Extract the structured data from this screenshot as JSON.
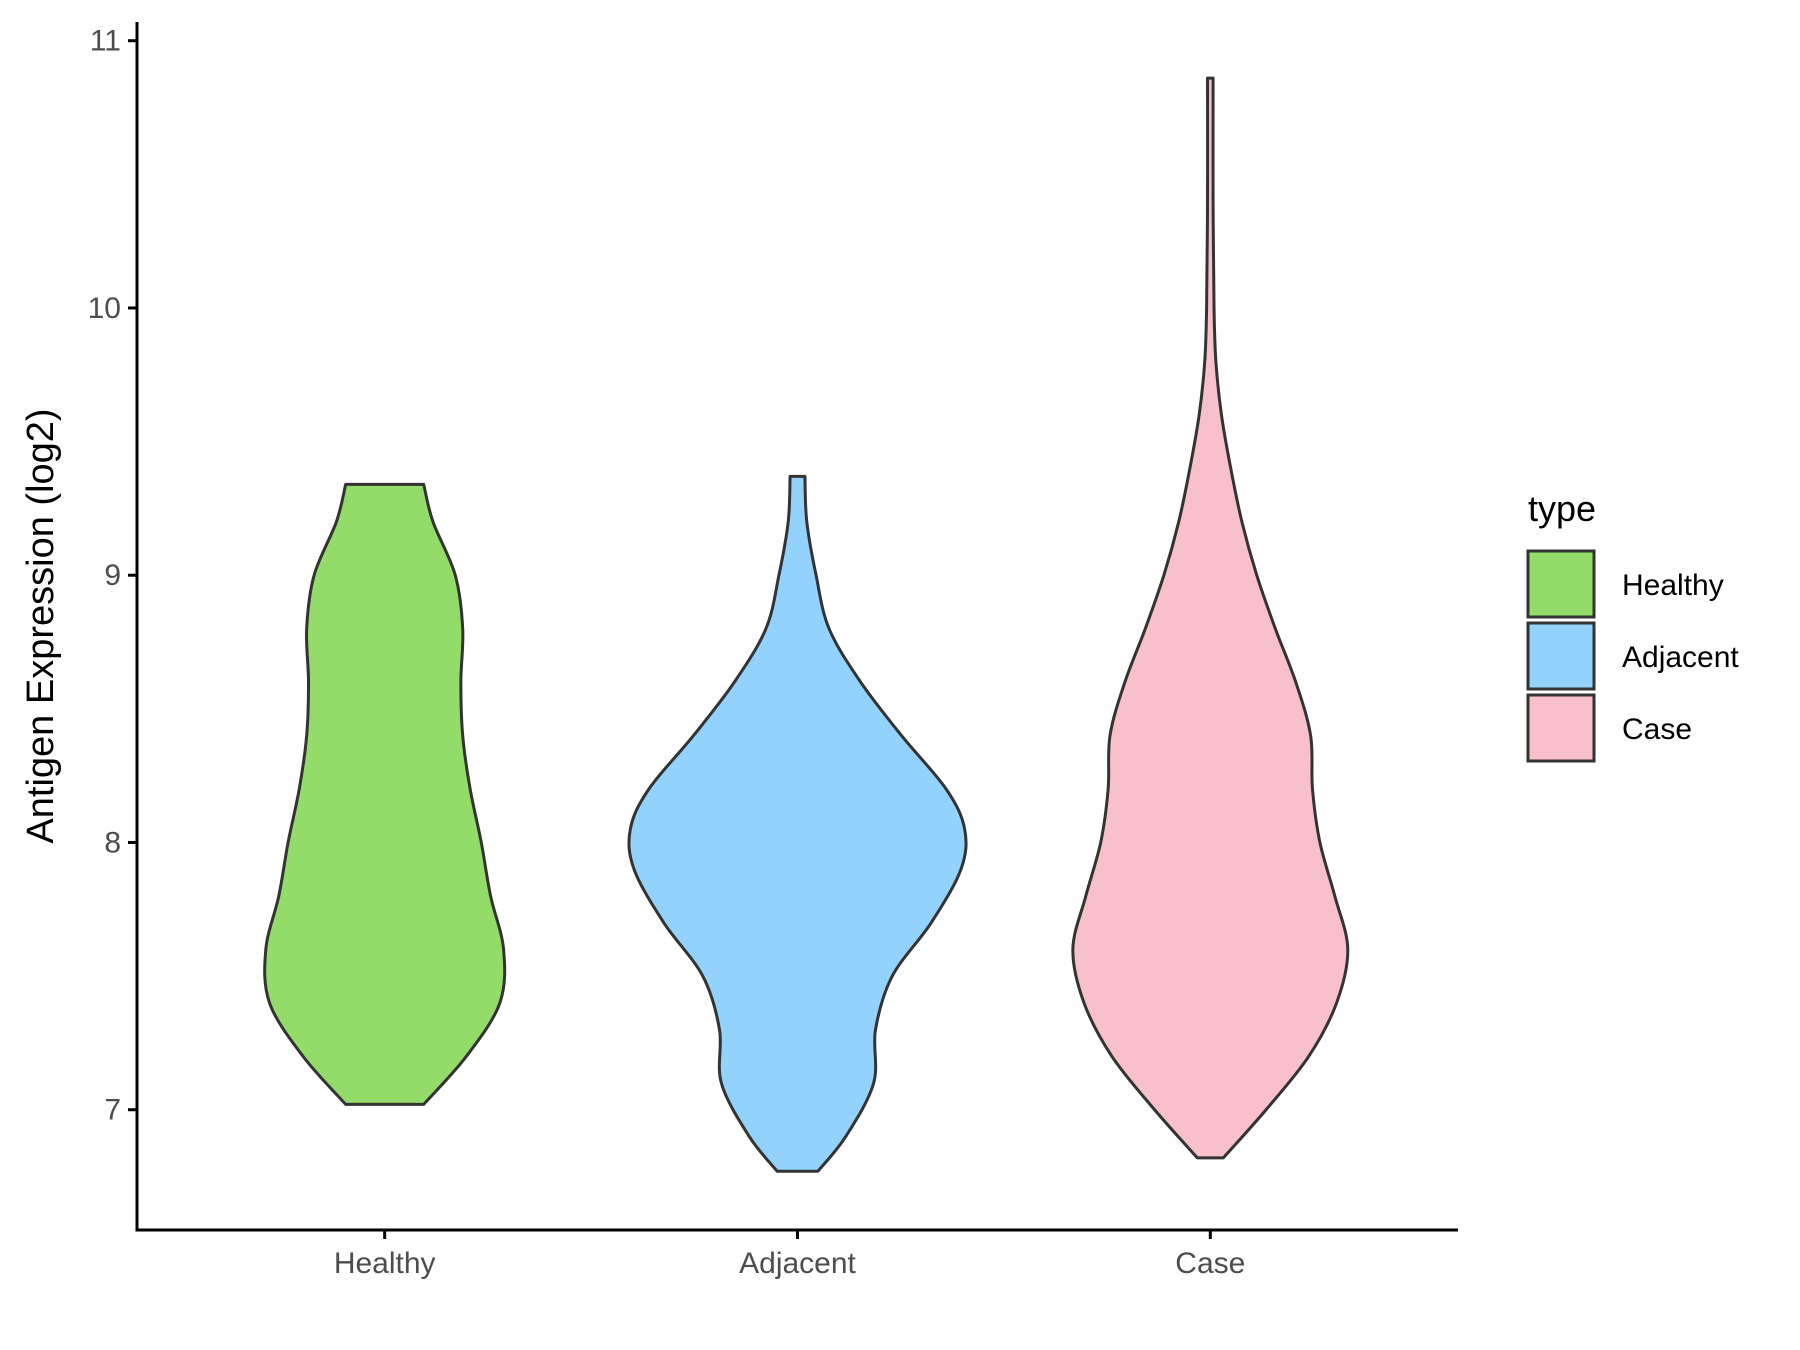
{
  "chart_data": {
    "type": "violin",
    "title": "",
    "xlabel": "",
    "ylabel": "Antigen Expression (log2)",
    "ylim": [
      6.55,
      11.07
    ],
    "yticks": [
      7,
      8,
      9,
      10,
      11
    ],
    "categories": [
      "Healthy",
      "Adjacent",
      "Case"
    ],
    "grid": false,
    "legend": {
      "title": "type",
      "placement": "right",
      "entries": [
        "Healthy",
        "Adjacent",
        "Case"
      ]
    },
    "series": [
      {
        "name": "Healthy",
        "color": "#93dc69",
        "min": 7.02,
        "max": 9.34,
        "density_profile": [
          [
            7.02,
            0.21
          ],
          [
            7.2,
            0.44
          ],
          [
            7.4,
            0.62
          ],
          [
            7.6,
            0.64
          ],
          [
            7.8,
            0.57
          ],
          [
            8.0,
            0.52
          ],
          [
            8.2,
            0.46
          ],
          [
            8.4,
            0.42
          ],
          [
            8.6,
            0.41
          ],
          [
            8.8,
            0.42
          ],
          [
            9.0,
            0.38
          ],
          [
            9.2,
            0.26
          ],
          [
            9.34,
            0.21
          ]
        ]
      },
      {
        "name": "Adjacent",
        "color": "#92d2fd",
        "min": 6.77,
        "max": 9.37,
        "density_profile": [
          [
            6.77,
            0.11
          ],
          [
            6.9,
            0.26
          ],
          [
            7.1,
            0.41
          ],
          [
            7.3,
            0.42
          ],
          [
            7.5,
            0.51
          ],
          [
            7.7,
            0.72
          ],
          [
            7.9,
            0.88
          ],
          [
            8.05,
            0.9
          ],
          [
            8.2,
            0.8
          ],
          [
            8.4,
            0.56
          ],
          [
            8.6,
            0.34
          ],
          [
            8.8,
            0.17
          ],
          [
            9.0,
            0.1
          ],
          [
            9.2,
            0.05
          ],
          [
            9.37,
            0.04
          ]
        ]
      },
      {
        "name": "Case",
        "color": "#f7c0cb",
        "min": 6.82,
        "max": 10.86,
        "density_profile": [
          [
            6.82,
            0.07
          ],
          [
            7.0,
            0.3
          ],
          [
            7.2,
            0.53
          ],
          [
            7.4,
            0.68
          ],
          [
            7.6,
            0.74
          ],
          [
            7.8,
            0.67
          ],
          [
            8.0,
            0.59
          ],
          [
            8.2,
            0.55
          ],
          [
            8.4,
            0.54
          ],
          [
            8.6,
            0.46
          ],
          [
            8.8,
            0.35
          ],
          [
            9.0,
            0.25
          ],
          [
            9.2,
            0.17
          ],
          [
            9.4,
            0.11
          ],
          [
            9.6,
            0.06
          ],
          [
            9.8,
            0.03
          ],
          [
            10.0,
            0.02
          ],
          [
            10.4,
            0.015
          ],
          [
            10.86,
            0.015
          ]
        ]
      }
    ]
  }
}
